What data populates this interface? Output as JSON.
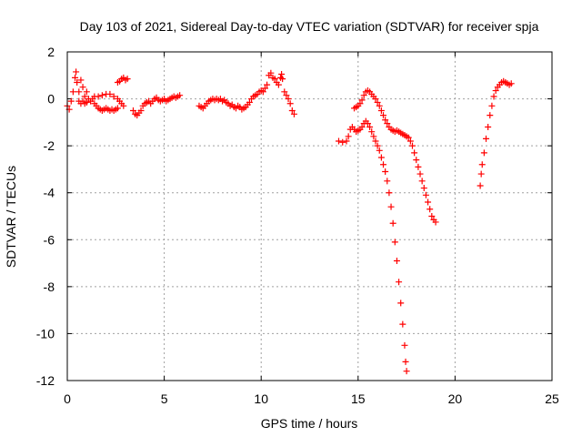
{
  "chart_data": {
    "type": "scatter",
    "title": "Day 103 of 2021, Sidereal Day-to-day VTEC variation (SDTVAR) for receiver spja",
    "xlabel": "GPS time / hours",
    "ylabel": "SDTVAR / TECUs",
    "xlim": [
      0,
      25
    ],
    "ylim": [
      -12,
      2
    ],
    "xticks": [
      0,
      5,
      10,
      15,
      20,
      25
    ],
    "yticks": [
      -12,
      -10,
      -8,
      -6,
      -4,
      -2,
      0,
      2
    ],
    "xtick_labels": [
      "0",
      "5",
      "10",
      "15",
      "20",
      "25"
    ],
    "ytick_labels": [
      "-12",
      "-10",
      "-8",
      "-6",
      "-4",
      "-2",
      "0",
      "2"
    ],
    "grid": true,
    "legend": "none",
    "marker": "plus",
    "color": "#ff0000",
    "series": [
      {
        "points": [
          [
            0.0,
            -0.3
          ],
          [
            0.1,
            -0.45
          ],
          [
            0.2,
            -0.1
          ],
          [
            0.3,
            0.3
          ],
          [
            0.4,
            0.9
          ],
          [
            0.45,
            1.15
          ],
          [
            0.5,
            0.7
          ],
          [
            0.6,
            0.3
          ],
          [
            0.7,
            0.8
          ],
          [
            0.8,
            0.5
          ],
          [
            0.9,
            0.1
          ],
          [
            1.0,
            0.3
          ],
          [
            1.1,
            0.0
          ],
          [
            1.2,
            -0.1
          ],
          [
            1.3,
            0.0
          ],
          [
            1.4,
            -0.2
          ],
          [
            1.5,
            -0.3
          ],
          [
            1.6,
            -0.4
          ],
          [
            1.7,
            -0.45
          ],
          [
            1.8,
            -0.5
          ],
          [
            1.9,
            -0.45
          ],
          [
            2.0,
            -0.4
          ],
          [
            2.1,
            -0.45
          ],
          [
            2.2,
            -0.5
          ],
          [
            2.3,
            -0.45
          ],
          [
            2.4,
            -0.5
          ],
          [
            2.5,
            -0.45
          ],
          [
            2.6,
            -0.4
          ],
          [
            0.6,
            -0.1
          ],
          [
            0.7,
            -0.2
          ],
          [
            0.8,
            -0.1
          ],
          [
            0.9,
            -0.2
          ],
          [
            1.0,
            -0.15
          ],
          [
            1.4,
            0.1
          ],
          [
            1.6,
            0.1
          ],
          [
            1.8,
            0.15
          ],
          [
            2.0,
            0.2
          ],
          [
            2.2,
            0.2
          ],
          [
            2.4,
            0.1
          ],
          [
            2.6,
            0.0
          ],
          [
            2.7,
            -0.1
          ],
          [
            2.8,
            -0.2
          ],
          [
            2.9,
            -0.3
          ],
          [
            2.6,
            0.7
          ],
          [
            2.7,
            0.75
          ],
          [
            2.8,
            0.85
          ],
          [
            2.9,
            0.9
          ],
          [
            3.0,
            0.8
          ],
          [
            3.1,
            0.85
          ],
          [
            3.4,
            -0.5
          ],
          [
            3.5,
            -0.65
          ],
          [
            3.6,
            -0.7
          ],
          [
            3.7,
            -0.6
          ],
          [
            3.8,
            -0.5
          ],
          [
            3.9,
            -0.3
          ],
          [
            4.0,
            -0.2
          ],
          [
            4.1,
            -0.15
          ],
          [
            4.2,
            -0.1
          ],
          [
            4.3,
            -0.2
          ],
          [
            4.4,
            -0.1
          ],
          [
            4.5,
            0.0
          ],
          [
            4.6,
            0.05
          ],
          [
            4.7,
            -0.05
          ],
          [
            4.8,
            -0.1
          ],
          [
            4.9,
            -0.05
          ],
          [
            5.0,
            0.0
          ],
          [
            5.1,
            -0.1
          ],
          [
            5.2,
            -0.05
          ],
          [
            5.3,
            0.0
          ],
          [
            5.4,
            0.05
          ],
          [
            5.5,
            0.1
          ],
          [
            5.6,
            0.05
          ],
          [
            5.7,
            0.1
          ],
          [
            5.8,
            0.15
          ],
          [
            6.8,
            -0.3
          ],
          [
            6.9,
            -0.35
          ],
          [
            7.0,
            -0.4
          ],
          [
            7.1,
            -0.3
          ],
          [
            7.2,
            -0.2
          ],
          [
            7.3,
            -0.1
          ],
          [
            7.4,
            -0.05
          ],
          [
            7.5,
            0.0
          ],
          [
            7.6,
            -0.05
          ],
          [
            7.7,
            0.0
          ],
          [
            7.8,
            -0.05
          ],
          [
            7.9,
            0.0
          ],
          [
            8.0,
            -0.1
          ],
          [
            8.1,
            -0.05
          ],
          [
            8.2,
            -0.15
          ],
          [
            8.3,
            -0.2
          ],
          [
            8.4,
            -0.3
          ],
          [
            8.5,
            -0.25
          ],
          [
            8.6,
            -0.35
          ],
          [
            8.7,
            -0.4
          ],
          [
            8.8,
            -0.3
          ],
          [
            8.9,
            -0.35
          ],
          [
            9.0,
            -0.45
          ],
          [
            9.1,
            -0.4
          ],
          [
            9.2,
            -0.35
          ],
          [
            9.3,
            -0.25
          ],
          [
            9.4,
            -0.15
          ],
          [
            9.5,
            0.0
          ],
          [
            9.6,
            0.1
          ],
          [
            9.7,
            0.15
          ],
          [
            9.8,
            0.2
          ],
          [
            9.9,
            0.3
          ],
          [
            10.0,
            0.35
          ],
          [
            10.1,
            0.3
          ],
          [
            10.2,
            0.45
          ],
          [
            10.3,
            0.6
          ],
          [
            10.4,
            1.0
          ],
          [
            10.5,
            1.1
          ],
          [
            10.6,
            0.9
          ],
          [
            10.7,
            0.85
          ],
          [
            10.8,
            0.7
          ],
          [
            10.9,
            0.6
          ],
          [
            11.0,
            0.9
          ],
          [
            11.05,
            1.05
          ],
          [
            11.1,
            0.85
          ],
          [
            11.2,
            0.3
          ],
          [
            11.3,
            0.15
          ],
          [
            11.4,
            0.0
          ],
          [
            11.5,
            -0.2
          ],
          [
            11.6,
            -0.5
          ],
          [
            11.7,
            -0.65
          ],
          [
            14.0,
            -1.8
          ],
          [
            14.2,
            -1.85
          ],
          [
            14.4,
            -1.8
          ],
          [
            14.5,
            -1.6
          ],
          [
            14.6,
            -1.3
          ],
          [
            14.7,
            -1.2
          ],
          [
            14.8,
            -1.3
          ],
          [
            14.9,
            -1.4
          ],
          [
            15.0,
            -1.35
          ],
          [
            15.1,
            -1.3
          ],
          [
            15.2,
            -1.2
          ],
          [
            15.3,
            -1.05
          ],
          [
            15.4,
            -0.95
          ],
          [
            15.5,
            -1.05
          ],
          [
            15.6,
            -1.2
          ],
          [
            15.7,
            -1.4
          ],
          [
            15.8,
            -1.6
          ],
          [
            15.9,
            -1.8
          ],
          [
            16.0,
            -2.0
          ],
          [
            16.1,
            -2.2
          ],
          [
            16.2,
            -2.5
          ],
          [
            16.3,
            -2.8
          ],
          [
            16.4,
            -3.1
          ],
          [
            16.5,
            -3.5
          ],
          [
            16.6,
            -4.0
          ],
          [
            16.7,
            -4.6
          ],
          [
            16.8,
            -5.3
          ],
          [
            16.9,
            -6.1
          ],
          [
            17.0,
            -6.9
          ],
          [
            17.1,
            -7.8
          ],
          [
            17.2,
            -8.7
          ],
          [
            17.3,
            -9.6
          ],
          [
            17.4,
            -10.5
          ],
          [
            17.45,
            -11.2
          ],
          [
            17.5,
            -11.6
          ],
          [
            14.8,
            -0.4
          ],
          [
            14.9,
            -0.35
          ],
          [
            15.0,
            -0.3
          ],
          [
            15.1,
            -0.2
          ],
          [
            15.2,
            -0.05
          ],
          [
            15.3,
            0.15
          ],
          [
            15.4,
            0.3
          ],
          [
            15.5,
            0.35
          ],
          [
            15.6,
            0.3
          ],
          [
            15.7,
            0.2
          ],
          [
            15.8,
            0.1
          ],
          [
            15.9,
            0.0
          ],
          [
            16.0,
            -0.15
          ],
          [
            16.1,
            -0.3
          ],
          [
            16.2,
            -0.5
          ],
          [
            16.3,
            -0.7
          ],
          [
            16.4,
            -0.9
          ],
          [
            16.5,
            -1.05
          ],
          [
            16.6,
            -1.2
          ],
          [
            16.7,
            -1.3
          ],
          [
            16.8,
            -1.35
          ],
          [
            16.9,
            -1.4
          ],
          [
            17.0,
            -1.35
          ],
          [
            17.1,
            -1.4
          ],
          [
            17.2,
            -1.45
          ],
          [
            17.3,
            -1.5
          ],
          [
            17.4,
            -1.55
          ],
          [
            17.5,
            -1.6
          ],
          [
            17.6,
            -1.65
          ],
          [
            17.7,
            -1.8
          ],
          [
            17.8,
            -2.0
          ],
          [
            17.9,
            -2.3
          ],
          [
            18.0,
            -2.6
          ],
          [
            18.1,
            -2.9
          ],
          [
            18.2,
            -3.2
          ],
          [
            18.3,
            -3.5
          ],
          [
            18.4,
            -3.8
          ],
          [
            18.5,
            -4.1
          ],
          [
            18.6,
            -4.4
          ],
          [
            18.7,
            -4.7
          ],
          [
            18.8,
            -5.0
          ],
          [
            18.9,
            -5.15
          ],
          [
            19.0,
            -5.25
          ],
          [
            21.3,
            -3.7
          ],
          [
            21.35,
            -3.2
          ],
          [
            21.4,
            -2.8
          ],
          [
            21.5,
            -2.3
          ],
          [
            21.6,
            -1.7
          ],
          [
            21.7,
            -1.2
          ],
          [
            21.8,
            -0.7
          ],
          [
            21.9,
            -0.3
          ],
          [
            22.0,
            0.1
          ],
          [
            22.1,
            0.35
          ],
          [
            22.2,
            0.5
          ],
          [
            22.3,
            0.6
          ],
          [
            22.4,
            0.7
          ],
          [
            22.5,
            0.75
          ],
          [
            22.6,
            0.7
          ],
          [
            22.7,
            0.65
          ],
          [
            22.8,
            0.6
          ],
          [
            22.9,
            0.65
          ]
        ]
      }
    ]
  }
}
